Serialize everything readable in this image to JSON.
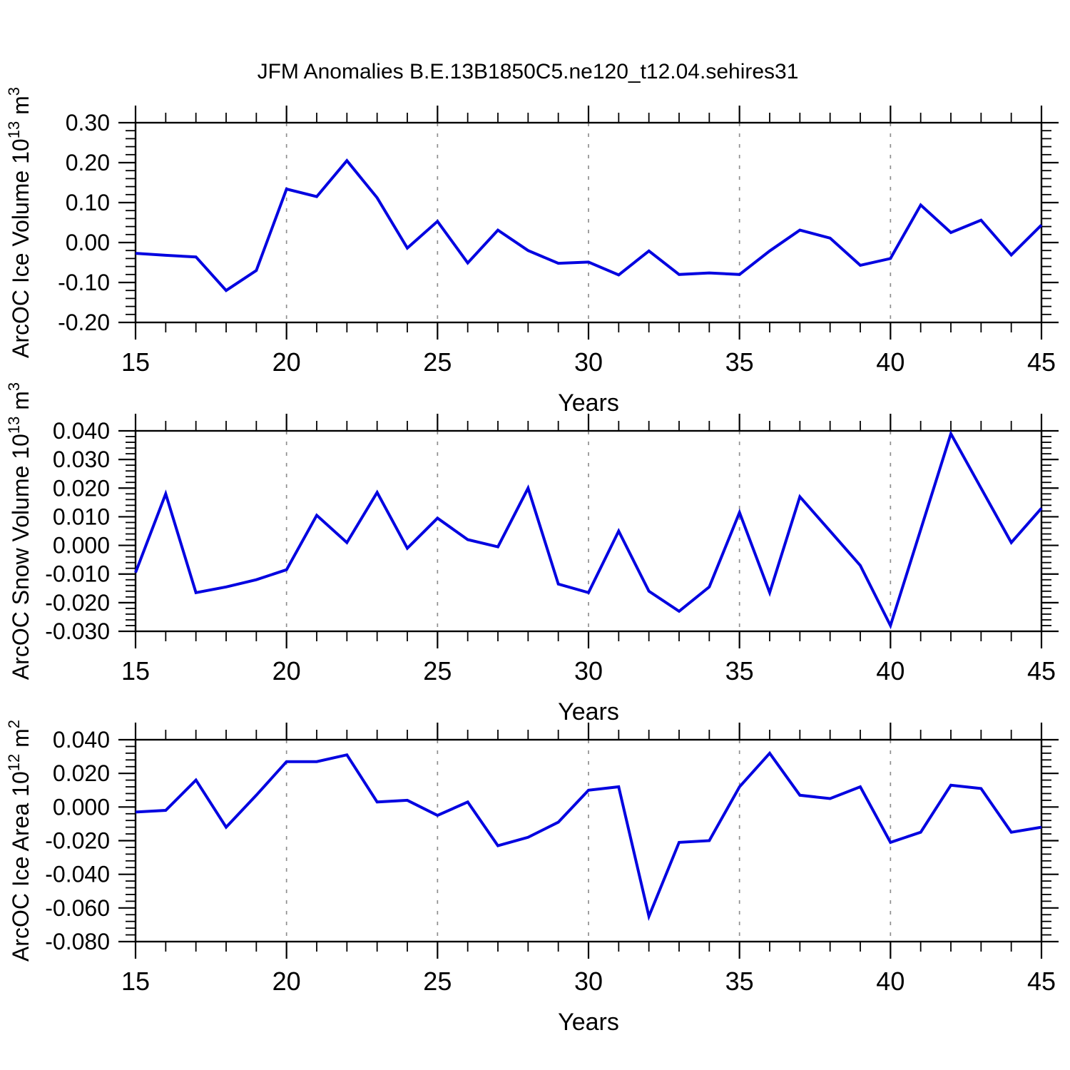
{
  "title": "JFM Anomalies B.E.13B1850C5.ne120_t12.04.sehires31",
  "colors": {
    "line": "#0202e0",
    "axis": "#000000",
    "grid": "#8f8f8f",
    "background": "#ffffff"
  },
  "chart_data": {
    "type": "line",
    "xlabel": "Years",
    "x": [
      15,
      16,
      17,
      18,
      19,
      20,
      21,
      22,
      23,
      24,
      25,
      26,
      27,
      28,
      29,
      30,
      31,
      32,
      33,
      34,
      35,
      36,
      37,
      38,
      39,
      40,
      41,
      42,
      43,
      44,
      45
    ],
    "xlim": [
      15,
      45
    ],
    "x_major_ticks": [
      15,
      20,
      25,
      30,
      35,
      40,
      45
    ],
    "x_minor_step": 1,
    "gridlines_x": [
      20,
      25,
      30,
      35,
      40
    ],
    "grid_on": true,
    "legend": "none",
    "panels": [
      {
        "id": "ice-volume",
        "ylabel_text": "ArcOC Ice Volume 10^13 m^3",
        "ylabel_parts": [
          {
            "t": "ArcOC Ice Volume 10"
          },
          {
            "t": "13",
            "sup": true
          },
          {
            "t": " m"
          },
          {
            "t": "3",
            "sup": true
          }
        ],
        "ylim": [
          -0.2,
          0.3
        ],
        "yticks": [
          0.3,
          0.2,
          0.1,
          0.0,
          -0.1,
          -0.2
        ],
        "ytick_labels": [
          "0.30",
          "0.20",
          "0.10",
          "0.00",
          "-0.10",
          "-0.20"
        ],
        "y_minor_step": 0.02,
        "values": [
          -0.027,
          -0.032,
          -0.036,
          -0.12,
          -0.07,
          0.134,
          0.115,
          0.205,
          0.112,
          -0.014,
          0.053,
          -0.051,
          0.031,
          -0.02,
          -0.052,
          -0.049,
          -0.081,
          -0.021,
          -0.08,
          -0.076,
          -0.08,
          -0.021,
          0.031,
          0.011,
          -0.057,
          -0.04,
          0.094,
          0.025,
          0.056,
          -0.031,
          0.044
        ]
      },
      {
        "id": "snow-volume",
        "ylabel_text": "ArcOC Snow Volume 10^13 m^3",
        "ylabel_parts": [
          {
            "t": "ArcOC Snow Volume 10"
          },
          {
            "t": "13",
            "sup": true
          },
          {
            "t": " m"
          },
          {
            "t": "3",
            "sup": true
          }
        ],
        "ylim": [
          -0.03,
          0.04
        ],
        "yticks": [
          0.04,
          0.03,
          0.02,
          0.01,
          0.0,
          -0.01,
          -0.02,
          -0.03
        ],
        "ytick_labels": [
          "0.040",
          "0.030",
          "0.020",
          "0.010",
          "0.000",
          "-0.010",
          "-0.020",
          "-0.030"
        ],
        "y_minor_step": 0.002,
        "values": [
          -0.0095,
          0.018,
          -0.0165,
          -0.0145,
          -0.012,
          -0.0085,
          0.0105,
          0.001,
          0.0185,
          -0.001,
          0.0095,
          0.002,
          -0.0005,
          0.02,
          -0.0135,
          -0.0165,
          0.005,
          -0.016,
          -0.023,
          -0.0145,
          0.0115,
          -0.0165,
          0.017,
          0.005,
          -0.007,
          -0.028,
          0.0055,
          0.039,
          0.02,
          0.001,
          0.013
        ]
      },
      {
        "id": "ice-area",
        "ylabel_text": "ArcOC Ice Area 10^12 m^2",
        "ylabel_parts": [
          {
            "t": "ArcOC Ice Area 10"
          },
          {
            "t": "12",
            "sup": true
          },
          {
            "t": " m"
          },
          {
            "t": "2",
            "sup": true
          }
        ],
        "ylim": [
          -0.08,
          0.04
        ],
        "yticks": [
          0.04,
          0.02,
          0.0,
          -0.02,
          -0.04,
          -0.06,
          -0.08
        ],
        "ytick_labels": [
          "0.040",
          "0.020",
          "0.000",
          "-0.020",
          "-0.040",
          "-0.060",
          "-0.080"
        ],
        "y_minor_step": 0.004,
        "values": [
          -0.003,
          -0.002,
          0.016,
          -0.012,
          0.007,
          0.027,
          0.027,
          0.031,
          0.003,
          0.004,
          -0.005,
          0.003,
          -0.023,
          -0.018,
          -0.009,
          0.01,
          0.012,
          -0.065,
          -0.021,
          -0.02,
          0.012,
          0.032,
          0.007,
          0.005,
          0.012,
          -0.021,
          -0.015,
          0.013,
          0.011,
          -0.015,
          -0.012
        ]
      }
    ]
  }
}
